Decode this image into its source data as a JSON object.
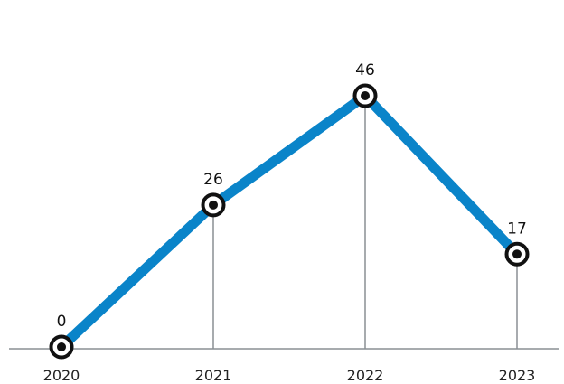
{
  "chart_data": {
    "type": "line",
    "title": "",
    "xlabel": "",
    "ylabel": "",
    "categories": [
      "2020",
      "2021",
      "2022",
      "2023"
    ],
    "series": [
      {
        "values": [
          0,
          26,
          46,
          17
        ]
      }
    ],
    "ylim": [
      0,
      60
    ],
    "grid": false,
    "data_labels": true,
    "colors": {
      "line": "#0a84c9",
      "marker_ring": "#111111",
      "marker_fill": "#ffffff",
      "drop_line": "#8a8f94",
      "axis": "#8a8f94"
    }
  }
}
